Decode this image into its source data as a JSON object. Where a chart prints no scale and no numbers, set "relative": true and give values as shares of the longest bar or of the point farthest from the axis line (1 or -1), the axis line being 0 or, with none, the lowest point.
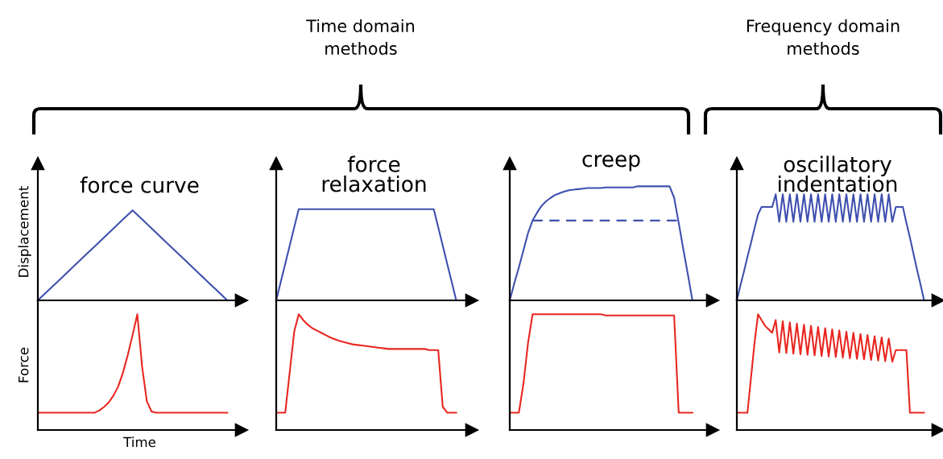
{
  "chart_data": [
    {
      "type": "line",
      "relative": true,
      "tick_labels": false,
      "title": "force curve",
      "ylabel": "Displacement",
      "annotations": [
        "Time domain\nmethods"
      ],
      "categories": [
        null,
        null,
        null,
        null,
        null,
        null,
        null,
        null,
        null,
        null,
        null,
        null,
        null,
        null,
        null,
        null,
        null,
        null,
        null,
        null,
        null
      ],
      "series": [
        {
          "color": "#3f4fae",
          "values": [
            0,
            0.1,
            0.2,
            0.3,
            0.4,
            0.5,
            0.6,
            0.7,
            0.8,
            0.9,
            1,
            0.9,
            0.8,
            0.7,
            0.6,
            0.5,
            0.4,
            0.3,
            0.2,
            0.1,
            0
          ]
        }
      ]
    },
    {
      "type": "line",
      "relative": true,
      "tick_labels": false,
      "title": "force\nrelaxation",
      "categories": [
        null,
        null,
        null,
        null,
        null,
        null,
        null,
        null,
        null,
        null,
        null,
        null,
        null,
        null,
        null,
        null,
        null,
        null,
        null,
        null,
        null,
        null,
        null,
        null,
        null,
        null,
        null,
        null,
        null,
        null,
        null,
        null,
        null,
        null,
        null,
        null,
        null,
        null,
        null,
        null,
        null
      ],
      "series": [
        {
          "color": "#3f4fae",
          "values": [
            0,
            0.2,
            0.4,
            0.6,
            0.8,
            1,
            1,
            1,
            1,
            1,
            1,
            1,
            1,
            1,
            1,
            1,
            1,
            1,
            1,
            1,
            1,
            1,
            1,
            1,
            1,
            1,
            1,
            1,
            1,
            1,
            1,
            1,
            1,
            1,
            1,
            1,
            0.8,
            0.6,
            0.4,
            0.2,
            0
          ]
        }
      ]
    },
    {
      "type": "line",
      "relative": true,
      "tick_labels": false,
      "title": "creep",
      "categories": [
        null,
        null,
        null,
        null,
        null,
        null,
        null,
        null,
        null,
        null,
        null,
        null,
        null,
        null,
        null,
        null,
        null,
        null,
        null,
        null,
        null,
        null,
        null,
        null,
        null,
        null,
        null,
        null,
        null,
        null,
        null,
        null,
        null,
        null,
        null,
        null,
        null,
        null,
        null,
        null,
        null
      ],
      "series": [
        {
          "color": "#3f4fae",
          "values": [
            0,
            0.15,
            0.29,
            0.44,
            0.59,
            0.7,
            0.77,
            0.83,
            0.87,
            0.9,
            0.925,
            0.94,
            0.955,
            0.965,
            0.97,
            0.975,
            0.98,
            0.985,
            0.985,
            0.985,
            0.985,
            0.99,
            0.99,
            0.99,
            0.99,
            0.99,
            0.99,
            0.99,
            1,
            1,
            1,
            1,
            1,
            1,
            1,
            1,
            0.9,
            0.68,
            0.45,
            0.23,
            0
          ]
        },
        {
          "color": "#3f4fae",
          "line_style": "dashed",
          "values": [
            null,
            null,
            null,
            null,
            null,
            0.7,
            0.7,
            0.7,
            0.7,
            0.7,
            0.7,
            0.7,
            0.7,
            0.7,
            0.7,
            0.7,
            0.7,
            0.7,
            0.7,
            0.7,
            0.7,
            0.7,
            0.7,
            0.7,
            0.7,
            0.7,
            0.7,
            0.7,
            0.7,
            0.7,
            0.7,
            0.7,
            0.7,
            0.7,
            0.7,
            0.7,
            0.7,
            0.7,
            null,
            null,
            null
          ]
        }
      ]
    },
    {
      "type": "line",
      "relative": true,
      "tick_labels": false,
      "title": "oscillatory\nindentation",
      "annotations": [
        "Frequency domain\nmethods"
      ],
      "categories": [
        null,
        null,
        null,
        null,
        null,
        null,
        null,
        null,
        null,
        null,
        null,
        null,
        null,
        null,
        null,
        null,
        null,
        null,
        null,
        null,
        null,
        null,
        null,
        null,
        null,
        null,
        null,
        null,
        null,
        null,
        null,
        null,
        null,
        null,
        null,
        null,
        null,
        null,
        null,
        null,
        null,
        null,
        null,
        null,
        null,
        null,
        null,
        null,
        null,
        null,
        null,
        null,
        null,
        null
      ],
      "series": [
        {
          "color": "#3f4fae",
          "values": [
            0,
            0.14,
            0.27,
            0.41,
            0.54,
            0.68,
            0.81,
            0.88,
            0.88,
            0.88,
            0.88,
            1,
            0.74,
            1,
            0.74,
            1,
            0.74,
            1,
            0.74,
            1,
            0.74,
            1,
            0.74,
            1,
            0.74,
            1,
            0.74,
            1,
            0.74,
            1,
            0.74,
            1,
            0.74,
            1,
            0.74,
            1,
            0.74,
            1,
            0.74,
            1,
            0.74,
            1,
            0.74,
            1,
            0.74,
            0.88,
            0.88,
            0.88,
            0.73,
            0.59,
            0.44,
            0.29,
            0.15,
            0
          ]
        }
      ]
    },
    {
      "type": "line",
      "relative": true,
      "tick_labels": false,
      "ylabel": "Force",
      "xlabel": "Time",
      "categories": [
        null,
        null,
        null,
        null,
        null,
        null,
        null,
        null,
        null,
        null,
        null,
        null,
        null,
        null,
        null,
        null,
        null,
        null,
        null,
        null,
        null,
        null,
        null,
        null,
        null,
        null,
        null,
        null,
        null,
        null,
        null,
        null,
        null,
        null,
        null,
        null,
        null,
        null,
        null,
        null,
        null
      ],
      "series": [
        {
          "color": "#e8261f",
          "values": [
            0.15,
            0.15,
            0.15,
            0.15,
            0.15,
            0.15,
            0.15,
            0.15,
            0.15,
            0.15,
            0.15,
            0.15,
            0.15,
            0.17,
            0.2,
            0.24,
            0.3,
            0.38,
            0.5,
            0.65,
            0.82,
            1,
            0.55,
            0.25,
            0.16,
            0.15,
            0.15,
            0.15,
            0.15,
            0.15,
            0.15,
            0.15,
            0.15,
            0.15,
            0.15,
            0.15,
            0.15,
            0.15,
            0.15,
            0.15,
            0.15
          ]
        }
      ]
    },
    {
      "type": "line",
      "relative": true,
      "tick_labels": false,
      "categories": [
        null,
        null,
        null,
        null,
        null,
        null,
        null,
        null,
        null,
        null,
        null,
        null,
        null,
        null,
        null,
        null,
        null,
        null,
        null,
        null,
        null,
        null,
        null,
        null,
        null,
        null,
        null,
        null,
        null,
        null,
        null,
        null,
        null,
        null,
        null,
        null,
        null,
        null,
        null,
        null,
        null
      ],
      "series": [
        {
          "color": "#e8261f",
          "values": [
            0.15,
            0.15,
            0.15,
            0.5,
            0.85,
            1,
            0.95,
            0.91,
            0.88,
            0.86,
            0.84,
            0.82,
            0.8,
            0.785,
            0.77,
            0.76,
            0.75,
            0.74,
            0.735,
            0.73,
            0.725,
            0.72,
            0.715,
            0.71,
            0.705,
            0.7,
            0.7,
            0.7,
            0.7,
            0.7,
            0.7,
            0.7,
            0.7,
            0.7,
            0.69,
            0.69,
            0.69,
            0.2,
            0.15,
            0.15,
            0.15
          ]
        }
      ]
    },
    {
      "type": "line",
      "relative": true,
      "tick_labels": false,
      "categories": [
        null,
        null,
        null,
        null,
        null,
        null,
        null,
        null,
        null,
        null,
        null,
        null,
        null,
        null,
        null,
        null,
        null,
        null,
        null,
        null,
        null,
        null,
        null,
        null,
        null,
        null,
        null,
        null,
        null,
        null,
        null,
        null,
        null,
        null,
        null,
        null,
        null,
        null,
        null,
        null,
        null
      ],
      "series": [
        {
          "color": "#e8261f",
          "values": [
            0.15,
            0.15,
            0.15,
            0.4,
            0.75,
            1,
            1,
            1,
            1,
            1,
            1,
            1,
            1,
            1,
            1,
            1,
            1,
            1,
            1,
            1,
            1,
            0.99,
            0.99,
            0.99,
            0.99,
            0.99,
            0.99,
            0.99,
            0.99,
            0.99,
            0.99,
            0.99,
            0.99,
            0.99,
            0.99,
            0.99,
            0.99,
            0.15,
            0.15,
            0.15,
            0.15
          ]
        }
      ]
    },
    {
      "type": "line",
      "relative": true,
      "tick_labels": false,
      "categories": [
        null,
        null,
        null,
        null,
        null,
        null,
        null,
        null,
        null,
        null,
        null,
        null,
        null,
        null,
        null,
        null,
        null,
        null,
        null,
        null,
        null,
        null,
        null,
        null,
        null,
        null,
        null,
        null,
        null,
        null,
        null,
        null,
        null,
        null,
        null,
        null,
        null,
        null,
        null,
        null,
        null,
        null,
        null,
        null,
        null,
        null,
        null,
        null,
        null,
        null,
        null,
        null,
        null,
        null
      ],
      "series": [
        {
          "color": "#e8261f",
          "values": [
            0.15,
            0.15,
            0.15,
            0.15,
            0.45,
            0.75,
            1,
            0.95,
            0.9,
            0.87,
            0.84,
            0.95,
            0.67,
            0.94,
            0.665,
            0.93,
            0.66,
            0.92,
            0.655,
            0.91,
            0.65,
            0.9,
            0.645,
            0.89,
            0.64,
            0.88,
            0.635,
            0.87,
            0.63,
            0.86,
            0.625,
            0.85,
            0.62,
            0.84,
            0.615,
            0.83,
            0.61,
            0.82,
            0.605,
            0.81,
            0.6,
            0.8,
            0.595,
            0.79,
            0.59,
            0.69,
            0.69,
            0.69,
            0.69,
            0.15,
            0.15,
            0.15,
            0.15,
            0.15
          ]
        }
      ]
    }
  ]
}
